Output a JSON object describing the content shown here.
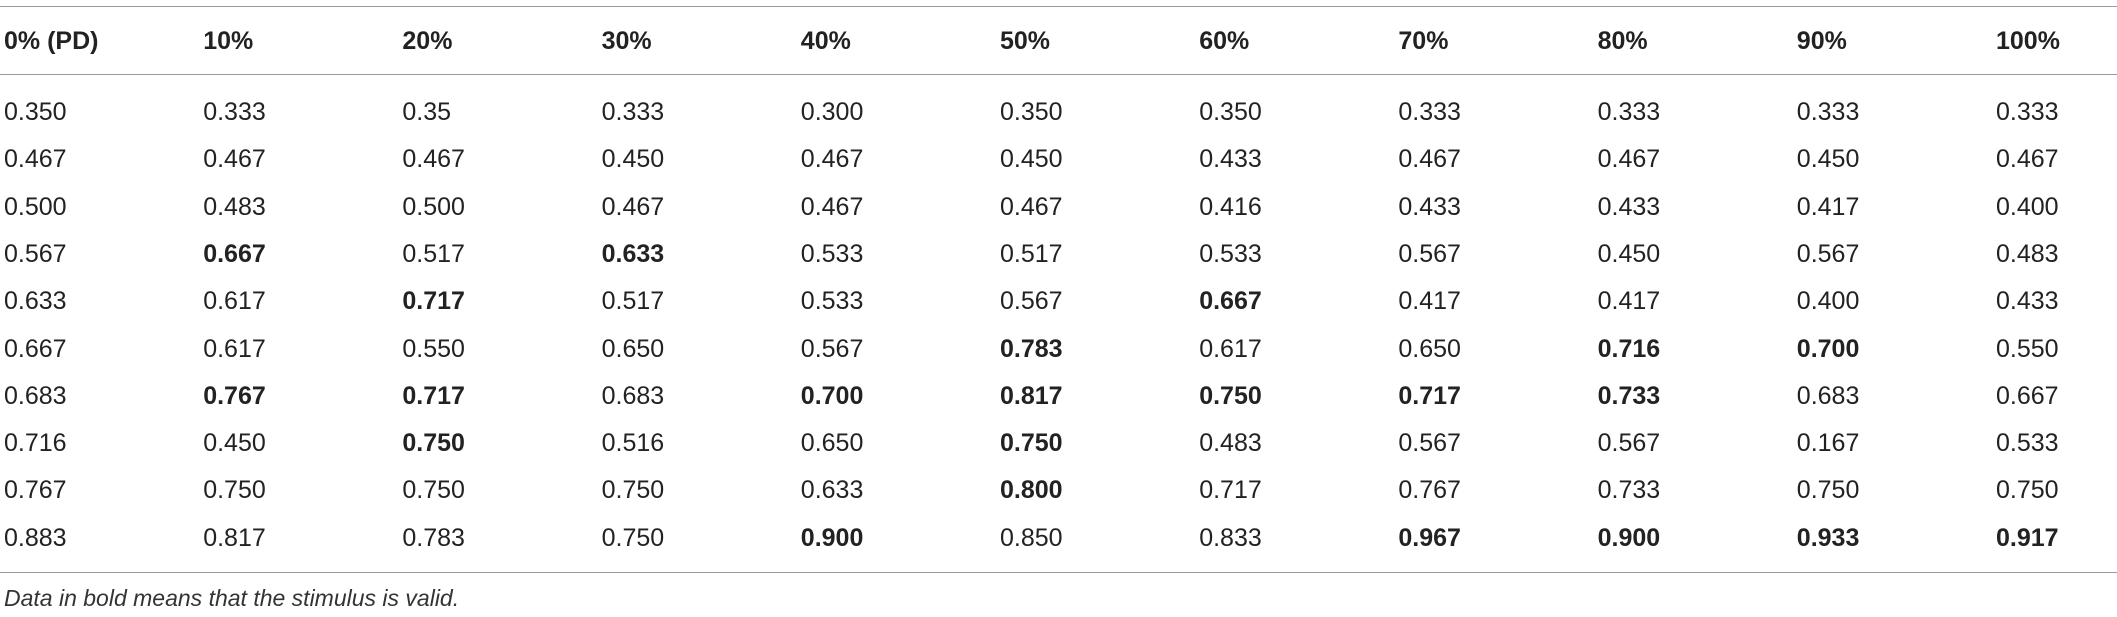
{
  "table": {
    "header": [
      "0% (PD)",
      "10%",
      "20%",
      "30%",
      "40%",
      "50%",
      "60%",
      "70%",
      "80%",
      "90%",
      "100%"
    ],
    "rows": [
      [
        "0.350",
        "0.333",
        "0.35",
        "0.333",
        "0.300",
        "0.350",
        "0.350",
        "0.333",
        "0.333",
        "0.333",
        "0.333"
      ],
      [
        "0.467",
        "0.467",
        "0.467",
        "0.450",
        "0.467",
        "0.450",
        "0.433",
        "0.467",
        "0.467",
        "0.450",
        "0.467"
      ],
      [
        "0.500",
        "0.483",
        "0.500",
        "0.467",
        "0.467",
        "0.467",
        "0.416",
        "0.433",
        "0.433",
        "0.417",
        "0.400"
      ],
      [
        "0.567",
        "0.667",
        "0.517",
        "0.633",
        "0.533",
        "0.517",
        "0.533",
        "0.567",
        "0.450",
        "0.567",
        "0.483"
      ],
      [
        "0.633",
        "0.617",
        "0.717",
        "0.517",
        "0.533",
        "0.567",
        "0.667",
        "0.417",
        "0.417",
        "0.400",
        "0.433"
      ],
      [
        "0.667",
        "0.617",
        "0.550",
        "0.650",
        "0.567",
        "0.783",
        "0.617",
        "0.650",
        "0.716",
        "0.700",
        "0.550"
      ],
      [
        "0.683",
        "0.767",
        "0.717",
        "0.683",
        "0.700",
        "0.817",
        "0.750",
        "0.717",
        "0.733",
        "0.683",
        "0.667"
      ],
      [
        "0.716",
        "0.450",
        "0.750",
        "0.516",
        "0.650",
        "0.750",
        "0.483",
        "0.567",
        "0.567",
        "0.167",
        "0.533"
      ],
      [
        "0.767",
        "0.750",
        "0.750",
        "0.750",
        "0.633",
        "0.800",
        "0.717",
        "0.767",
        "0.733",
        "0.750",
        "0.750"
      ],
      [
        "0.883",
        "0.817",
        "0.783",
        "0.750",
        "0.900",
        "0.850",
        "0.833",
        "0.967",
        "0.900",
        "0.933",
        "0.917"
      ]
    ],
    "bold": [
      [
        false,
        false,
        false,
        false,
        false,
        false,
        false,
        false,
        false,
        false,
        false
      ],
      [
        false,
        false,
        false,
        false,
        false,
        false,
        false,
        false,
        false,
        false,
        false
      ],
      [
        false,
        false,
        false,
        false,
        false,
        false,
        false,
        false,
        false,
        false,
        false
      ],
      [
        false,
        true,
        false,
        true,
        false,
        false,
        false,
        false,
        false,
        false,
        false
      ],
      [
        false,
        false,
        true,
        false,
        false,
        false,
        true,
        false,
        false,
        false,
        false
      ],
      [
        false,
        false,
        false,
        false,
        false,
        true,
        false,
        false,
        true,
        true,
        false
      ],
      [
        false,
        true,
        true,
        false,
        true,
        true,
        true,
        true,
        true,
        false,
        false
      ],
      [
        false,
        false,
        true,
        false,
        false,
        true,
        false,
        false,
        false,
        false,
        false
      ],
      [
        false,
        false,
        false,
        false,
        false,
        true,
        false,
        false,
        false,
        false,
        false
      ],
      [
        false,
        false,
        false,
        false,
        true,
        false,
        false,
        true,
        true,
        true,
        true
      ]
    ],
    "footnote": "Data in bold means that the stimulus is valid."
  }
}
